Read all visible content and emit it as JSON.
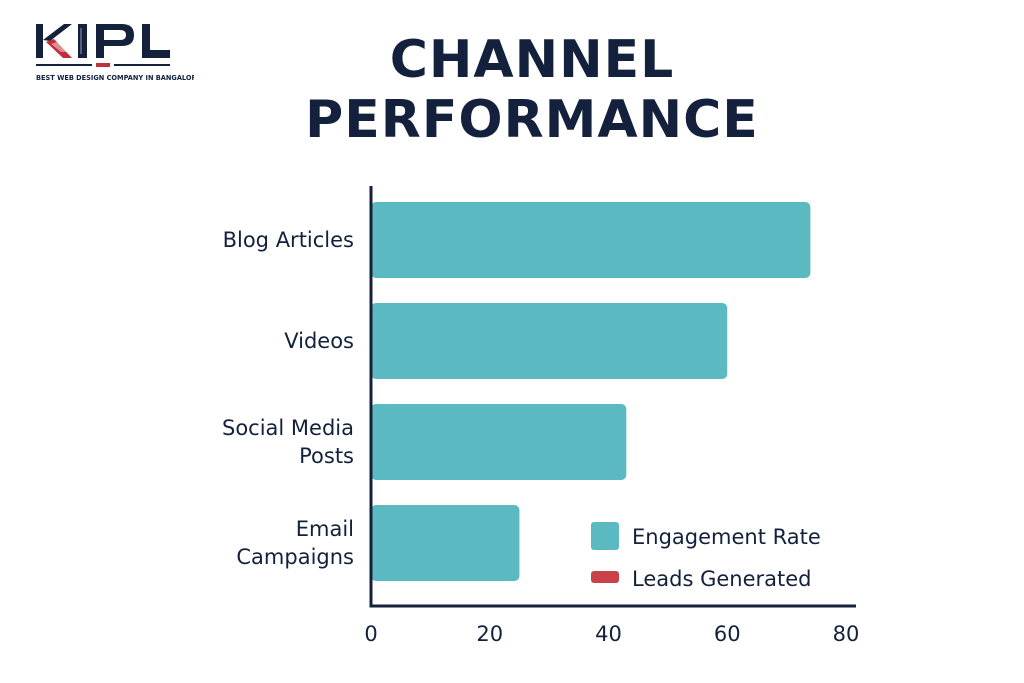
{
  "brand": {
    "logo_text": "KIPL",
    "tagline": "BEST WEB DESIGN COMPANY IN BANGALORE",
    "colors": {
      "navy": "#14213d",
      "red": "#c0303a"
    }
  },
  "title_lines": [
    "CHANNEL",
    "PERFORMANCE"
  ],
  "chart_data": {
    "type": "bar",
    "orientation": "horizontal",
    "title": "CHANNEL PERFORMANCE",
    "xlabel": "",
    "ylabel": "",
    "categories": [
      [
        "Blog Articles"
      ],
      [
        "Videos"
      ],
      [
        "Social Media",
        "Posts"
      ],
      [
        "Email",
        "Campaigns"
      ]
    ],
    "series": [
      {
        "name": "Engagement Rate",
        "values": [
          74,
          60,
          43,
          25
        ],
        "color": "#5bbac1"
      },
      {
        "name": "Leads Generated",
        "values": [
          0,
          0,
          0,
          0
        ],
        "color": "#c9424a"
      }
    ],
    "xlim": [
      0,
      80
    ],
    "ticks": [
      0,
      20,
      40,
      60,
      80
    ],
    "grid": false,
    "legend_position": "bottom-right",
    "axis_color": "#14213d"
  }
}
